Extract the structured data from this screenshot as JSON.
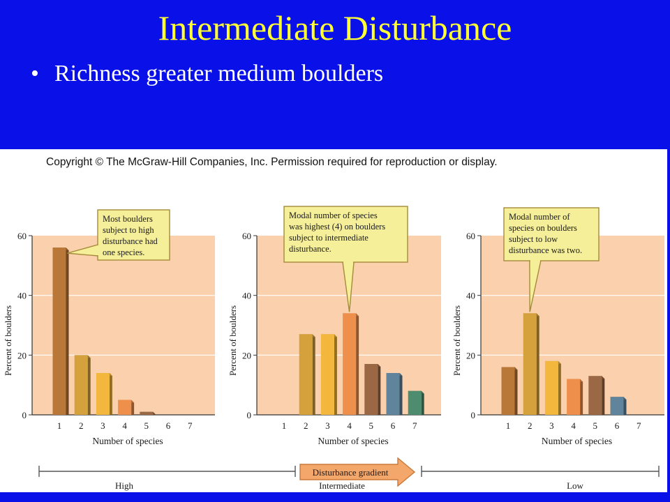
{
  "slide": {
    "title": "Intermediate Disturbance",
    "bullet": "Richness greater medium boulders"
  },
  "figure": {
    "copyright": "Copyright © The McGraw-Hill Companies, Inc. Permission required for reproduction or display.",
    "gradient_label": "Disturbance gradient",
    "gradient_levels": [
      "High",
      "Intermediate",
      "Low"
    ]
  },
  "colors": {
    "background": "#0a10e8",
    "title": "#ffff33",
    "bullet": "#ffffff",
    "plot_area": "#fbd1ad",
    "callout_fill": "#f6ef9a",
    "callout_border": "#a58a3a",
    "bars": [
      "#b97838",
      "#d5a13d",
      "#f2b73c",
      "#ee8f4c",
      "#9a6844",
      "#60849c",
      "#4d8c6e"
    ]
  },
  "chart_data": [
    {
      "type": "bar",
      "categories": [
        "1",
        "2",
        "3",
        "4",
        "5",
        "6",
        "7"
      ],
      "values": [
        56,
        20,
        14,
        5,
        1,
        0,
        0
      ],
      "xlabel": "Number of species",
      "ylabel": "Percent of boulders",
      "ylim": [
        0,
        60
      ],
      "yticks": [
        "0",
        "20",
        "40",
        "60"
      ],
      "callout": [
        "Most boulders",
        "subject to high",
        "disturbance had",
        "one species."
      ],
      "callout_target_category": "1",
      "grid": true
    },
    {
      "type": "bar",
      "categories": [
        "1",
        "2",
        "3",
        "4",
        "5",
        "6",
        "7"
      ],
      "values": [
        0,
        27,
        27,
        34,
        17,
        14,
        8
      ],
      "xlabel": "Number of species",
      "ylabel": "Percent of boulders",
      "ylim": [
        0,
        60
      ],
      "yticks": [
        "0",
        "20",
        "40",
        "60"
      ],
      "callout": [
        "Modal number of species",
        "was highest (4) on boulders",
        "subject to intermediate",
        "disturbance."
      ],
      "callout_target_category": "4",
      "grid": true
    },
    {
      "type": "bar",
      "categories": [
        "1",
        "2",
        "3",
        "4",
        "5",
        "6",
        "7"
      ],
      "values": [
        16,
        34,
        18,
        12,
        13,
        6,
        0
      ],
      "xlabel": "Number of species",
      "ylabel": "Percent of boulders",
      "ylim": [
        0,
        60
      ],
      "yticks": [
        "0",
        "20",
        "40",
        "60"
      ],
      "callout": [
        "Modal number of",
        "species on boulders",
        "subject to low",
        "disturbance was two."
      ],
      "callout_target_category": "2",
      "grid": true
    }
  ]
}
